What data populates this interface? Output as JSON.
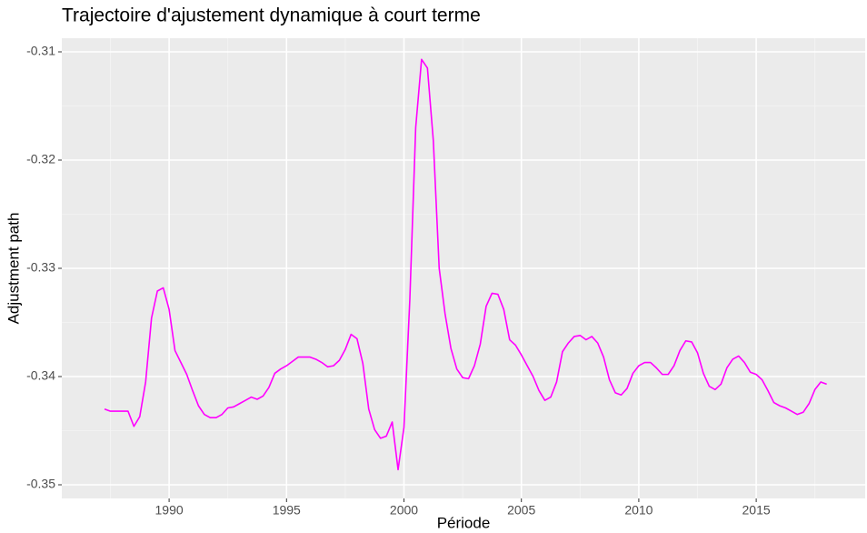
{
  "chart_data": {
    "type": "line",
    "title": "Trajectoire d'ajustement dynamique à court terme",
    "x_label": "Période",
    "y_label": "Adjustment path",
    "x": [
      1987.25,
      1987.5,
      1987.75,
      1988,
      1988.25,
      1988.5,
      1988.75,
      1989,
      1989.25,
      1989.5,
      1989.75,
      1990,
      1990.25,
      1990.5,
      1990.75,
      1991,
      1991.25,
      1991.5,
      1991.75,
      1992,
      1992.25,
      1992.5,
      1992.75,
      1993,
      1993.25,
      1993.5,
      1993.75,
      1994,
      1994.25,
      1994.5,
      1994.75,
      1995,
      1995.25,
      1995.5,
      1995.75,
      1996,
      1996.25,
      1996.5,
      1996.75,
      1997,
      1997.25,
      1997.5,
      1997.75,
      1998,
      1998.25,
      1998.5,
      1998.75,
      1999,
      1999.25,
      1999.5,
      1999.75,
      2000,
      2000.25,
      2000.5,
      2000.75,
      2001,
      2001.25,
      2001.5,
      2001.75,
      2002,
      2002.25,
      2002.5,
      2002.75,
      2003,
      2003.25,
      2003.5,
      2003.75,
      2004,
      2004.25,
      2004.5,
      2004.75,
      2005,
      2005.25,
      2005.5,
      2005.75,
      2006,
      2006.25,
      2006.5,
      2006.75,
      2007,
      2007.25,
      2007.5,
      2007.75,
      2008,
      2008.25,
      2008.5,
      2008.75,
      2009,
      2009.25,
      2009.5,
      2009.75,
      2010,
      2010.25,
      2010.5,
      2010.75,
      2011,
      2011.25,
      2011.5,
      2011.75,
      2012,
      2012.25,
      2012.5,
      2012.75,
      2013,
      2013.25,
      2013.5,
      2013.75,
      2014,
      2014.25,
      2014.5,
      2014.75,
      2015,
      2015.25,
      2015.5,
      2015.75,
      2016,
      2016.25,
      2016.5,
      2016.75,
      2017,
      2017.25,
      2017.5,
      2017.75,
      2018
    ],
    "series": [
      {
        "name": "Adjustment path",
        "color": "#ff00ff",
        "values": [
          -0.343,
          -0.3432,
          -0.3432,
          -0.3432,
          -0.3432,
          -0.3446,
          -0.3437,
          -0.3405,
          -0.3346,
          -0.3321,
          -0.3318,
          -0.3338,
          -0.3376,
          -0.3387,
          -0.3398,
          -0.3413,
          -0.3427,
          -0.3435,
          -0.3438,
          -0.3438,
          -0.3435,
          -0.3429,
          -0.3428,
          -0.3425,
          -0.3422,
          -0.3419,
          -0.3421,
          -0.3418,
          -0.341,
          -0.3397,
          -0.3393,
          -0.339,
          -0.3386,
          -0.3382,
          -0.3382,
          -0.3382,
          -0.3384,
          -0.3387,
          -0.3391,
          -0.339,
          -0.3385,
          -0.3375,
          -0.3361,
          -0.3365,
          -0.3388,
          -0.343,
          -0.3449,
          -0.3457,
          -0.3455,
          -0.3442,
          -0.3486,
          -0.3447,
          -0.3329,
          -0.317,
          -0.3107,
          -0.3115,
          -0.3182,
          -0.33,
          -0.3342,
          -0.3374,
          -0.3393,
          -0.3401,
          -0.3402,
          -0.339,
          -0.337,
          -0.3335,
          -0.3323,
          -0.3324,
          -0.3338,
          -0.3366,
          -0.3371,
          -0.338,
          -0.339,
          -0.34,
          -0.3413,
          -0.3422,
          -0.3419,
          -0.3405,
          -0.3377,
          -0.3369,
          -0.3363,
          -0.3362,
          -0.3366,
          -0.3363,
          -0.3369,
          -0.3382,
          -0.3403,
          -0.3415,
          -0.3417,
          -0.3411,
          -0.3397,
          -0.339,
          -0.3387,
          -0.3387,
          -0.3392,
          -0.3398,
          -0.3398,
          -0.339,
          -0.3376,
          -0.3367,
          -0.3368,
          -0.3378,
          -0.3397,
          -0.3409,
          -0.3412,
          -0.3407,
          -0.3392,
          -0.3384,
          -0.3381,
          -0.3387,
          -0.3396,
          -0.3398,
          -0.3403,
          -0.3413,
          -0.3424,
          -0.3427,
          -0.3429,
          -0.3432,
          -0.3435,
          -0.3433,
          -0.3425,
          -0.3412,
          -0.3405,
          -0.3407
        ]
      }
    ],
    "xlim": [
      1985.43,
      2019.64
    ],
    "xticks": [
      1990,
      1995,
      2000,
      2005,
      2010,
      2015
    ],
    "ylim": [
      -0.35126,
      -0.30874
    ],
    "yticks": [
      -0.35,
      -0.34,
      -0.33,
      -0.32,
      -0.31
    ],
    "grid": true
  }
}
